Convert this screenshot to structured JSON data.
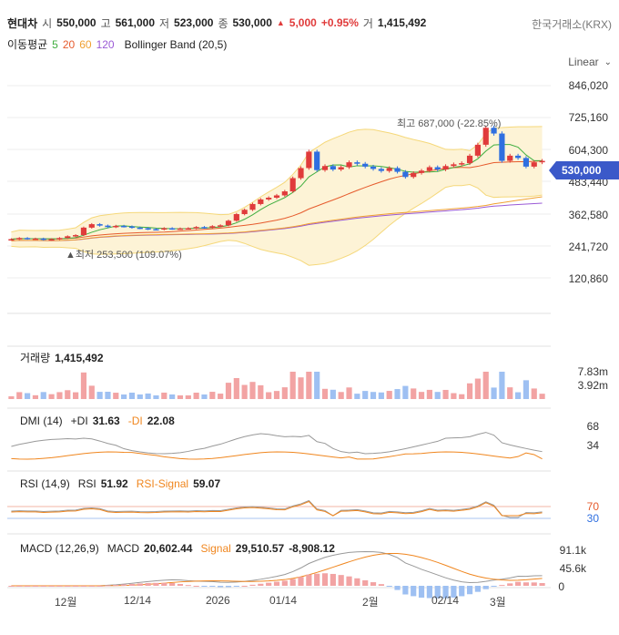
{
  "header": {
    "name": "현대차",
    "open_label": "시",
    "open": "550,000",
    "high_label": "고",
    "high": "561,000",
    "low_label": "저",
    "low": "523,000",
    "close_label": "종",
    "close": "530,000",
    "change_arrow": "▲",
    "change": "5,000",
    "change_pct": "+0.95%",
    "volume_label": "거",
    "volume": "1,415,492",
    "exchange": "한국거래소(KRX)"
  },
  "ma": {
    "label": "이동평균",
    "p5": "5",
    "p20": "20",
    "p60": "60",
    "p120": "120",
    "bollinger": "Bollinger Band (20,5)"
  },
  "scale": {
    "label": "Linear",
    "icon": "chevron-down-icon"
  },
  "price_axis": [
    "846,020",
    "725,160",
    "604,300",
    "483,440",
    "362,580",
    "241,720",
    "120,860"
  ],
  "current_price": "530,000",
  "annotations": {
    "max_label": "최고 687,000 (-22.85%)",
    "min_label": "▲최저 253,500 (109.07%)"
  },
  "volume_panel": {
    "title": "거래량",
    "value": "1,415,492",
    "axis": [
      "7.83m",
      "3.92m"
    ]
  },
  "dmi_panel": {
    "title": "DMI (14)",
    "pdi_label": "+DI",
    "pdi": "31.63",
    "mdi_label": "-DI",
    "mdi": "22.08",
    "axis": [
      "68",
      "34"
    ]
  },
  "rsi_panel": {
    "title": "RSI (14,9)",
    "rsi_label": "RSI",
    "rsi": "51.92",
    "signal_label": "RSI-Signal",
    "signal": "59.07",
    "axis": [
      "70",
      "30"
    ]
  },
  "macd_panel": {
    "title": "MACD (12,26,9)",
    "macd_label": "MACD",
    "macd": "20,602.44",
    "signal_label": "Signal",
    "signal": "29,510.57",
    "hist": "-8,908.12",
    "axis": [
      "91.1k",
      "45.6k",
      "0"
    ]
  },
  "x_axis": [
    "12월",
    "12/14",
    "2026",
    "01/14",
    "2월",
    "02/14",
    "3월"
  ],
  "colors": {
    "up": "#e03b3b",
    "down": "#2f6fe0",
    "accent": "#3b59c9",
    "ma5": "#3fae3f",
    "ma20": "#e65b2d",
    "ma60": "#f0a030",
    "ma120": "#9a5ad6",
    "band_fill": "#fdf3d6",
    "band_line": "#f5d87a"
  },
  "chart_data": {
    "type": "candlestick",
    "dates_start": "",
    "closes": [
      258000,
      262000,
      259000,
      260000,
      256000,
      258000,
      262000,
      268000,
      272000,
      298000,
      310000,
      305000,
      300000,
      304000,
      302000,
      298000,
      296000,
      293000,
      292000,
      296000,
      294000,
      295000,
      296000,
      300000,
      298000,
      303000,
      306000,
      322000,
      345000,
      360000,
      380000,
      396000,
      402000,
      410000,
      424000,
      470000,
      505000,
      562000,
      498000,
      512000,
      500000,
      508000,
      525000,
      520000,
      510000,
      502000,
      495000,
      505000,
      492000,
      474000,
      488000,
      496000,
      508000,
      500000,
      512000,
      518000,
      522000,
      548000,
      586000,
      645000,
      625000,
      530000,
      548000,
      540000,
      510000,
      525000,
      530000
    ],
    "ylim": [
      0,
      880000
    ]
  }
}
